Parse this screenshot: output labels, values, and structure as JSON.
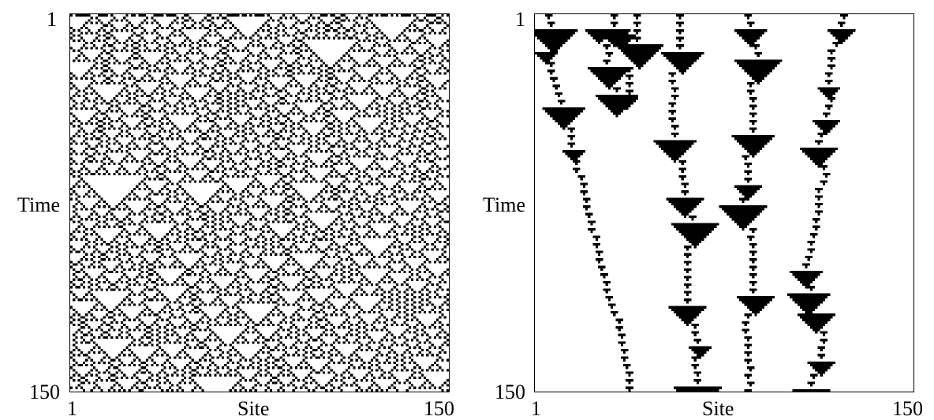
{
  "panels": [
    {
      "ylabel": "Time",
      "xlabel": "Site",
      "y_top_tick": "1",
      "y_bottom_tick": "150",
      "x_left_tick": "1",
      "x_right_tick": "150",
      "pattern": "dense-triangles"
    },
    {
      "ylabel": "Time",
      "xlabel": "Site",
      "y_top_tick": "1",
      "y_bottom_tick": "150",
      "x_left_tick": "1",
      "x_right_tick": "150",
      "pattern": "sparse-particles"
    }
  ],
  "colors": {
    "cell": "#000000",
    "background": "#ffffff"
  }
}
